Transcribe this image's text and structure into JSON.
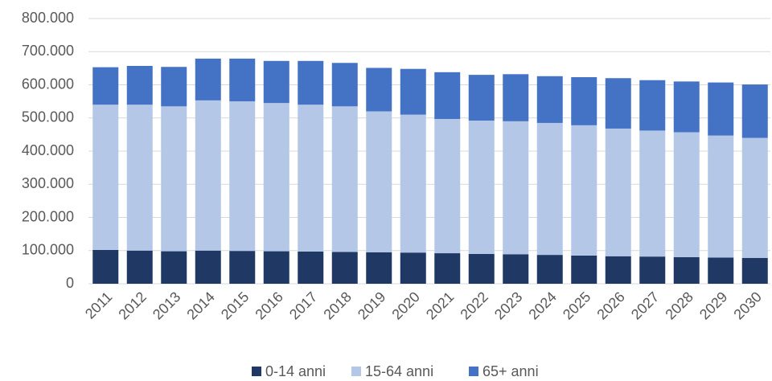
{
  "chart_data": {
    "type": "stacked_bar",
    "categories": [
      "2011",
      "2012",
      "2013",
      "2014",
      "2015",
      "2016",
      "2017",
      "2018",
      "2019",
      "2020",
      "2021",
      "2022",
      "2023",
      "2024",
      "2025",
      "2026",
      "2027",
      "2028",
      "2029",
      "2030"
    ],
    "series": [
      {
        "name": "0-14 anni",
        "color": "#1f3864",
        "values": [
          102000,
          100000,
          98000,
          100000,
          99000,
          98000,
          97000,
          96000,
          95000,
          94000,
          92000,
          90000,
          89000,
          87000,
          85000,
          83000,
          82000,
          80000,
          79000,
          78000
        ]
      },
      {
        "name": "15-64 anni",
        "color": "#b4c7e7",
        "values": [
          438000,
          440000,
          437000,
          453000,
          451000,
          447000,
          443000,
          439000,
          425000,
          416000,
          405000,
          402000,
          401000,
          398000,
          393000,
          385000,
          380000,
          377000,
          368000,
          362000
        ]
      },
      {
        "name": "65+ anni",
        "color": "#4472c4",
        "values": [
          113000,
          117000,
          119000,
          126000,
          129000,
          127000,
          132000,
          131000,
          131000,
          138000,
          141000,
          138000,
          142000,
          141000,
          145000,
          152000,
          152000,
          153000,
          160000,
          161000
        ]
      }
    ],
    "ylim": [
      0,
      800000
    ],
    "yticks": [
      0,
      {
        "value": 100000,
        "label": "100.000"
      },
      {
        "value": 200000,
        "label": "200.000"
      },
      {
        "value": 300000,
        "label": "300.000"
      },
      {
        "value": 400000,
        "label": "400.000"
      },
      {
        "value": 500000,
        "label": "500.000"
      },
      {
        "value": 600000,
        "label": "600.000"
      },
      {
        "value": 700000,
        "label": "700.000"
      },
      {
        "value": 800000,
        "label": "800.000"
      }
    ],
    "grid": true,
    "legend": "bottom"
  }
}
